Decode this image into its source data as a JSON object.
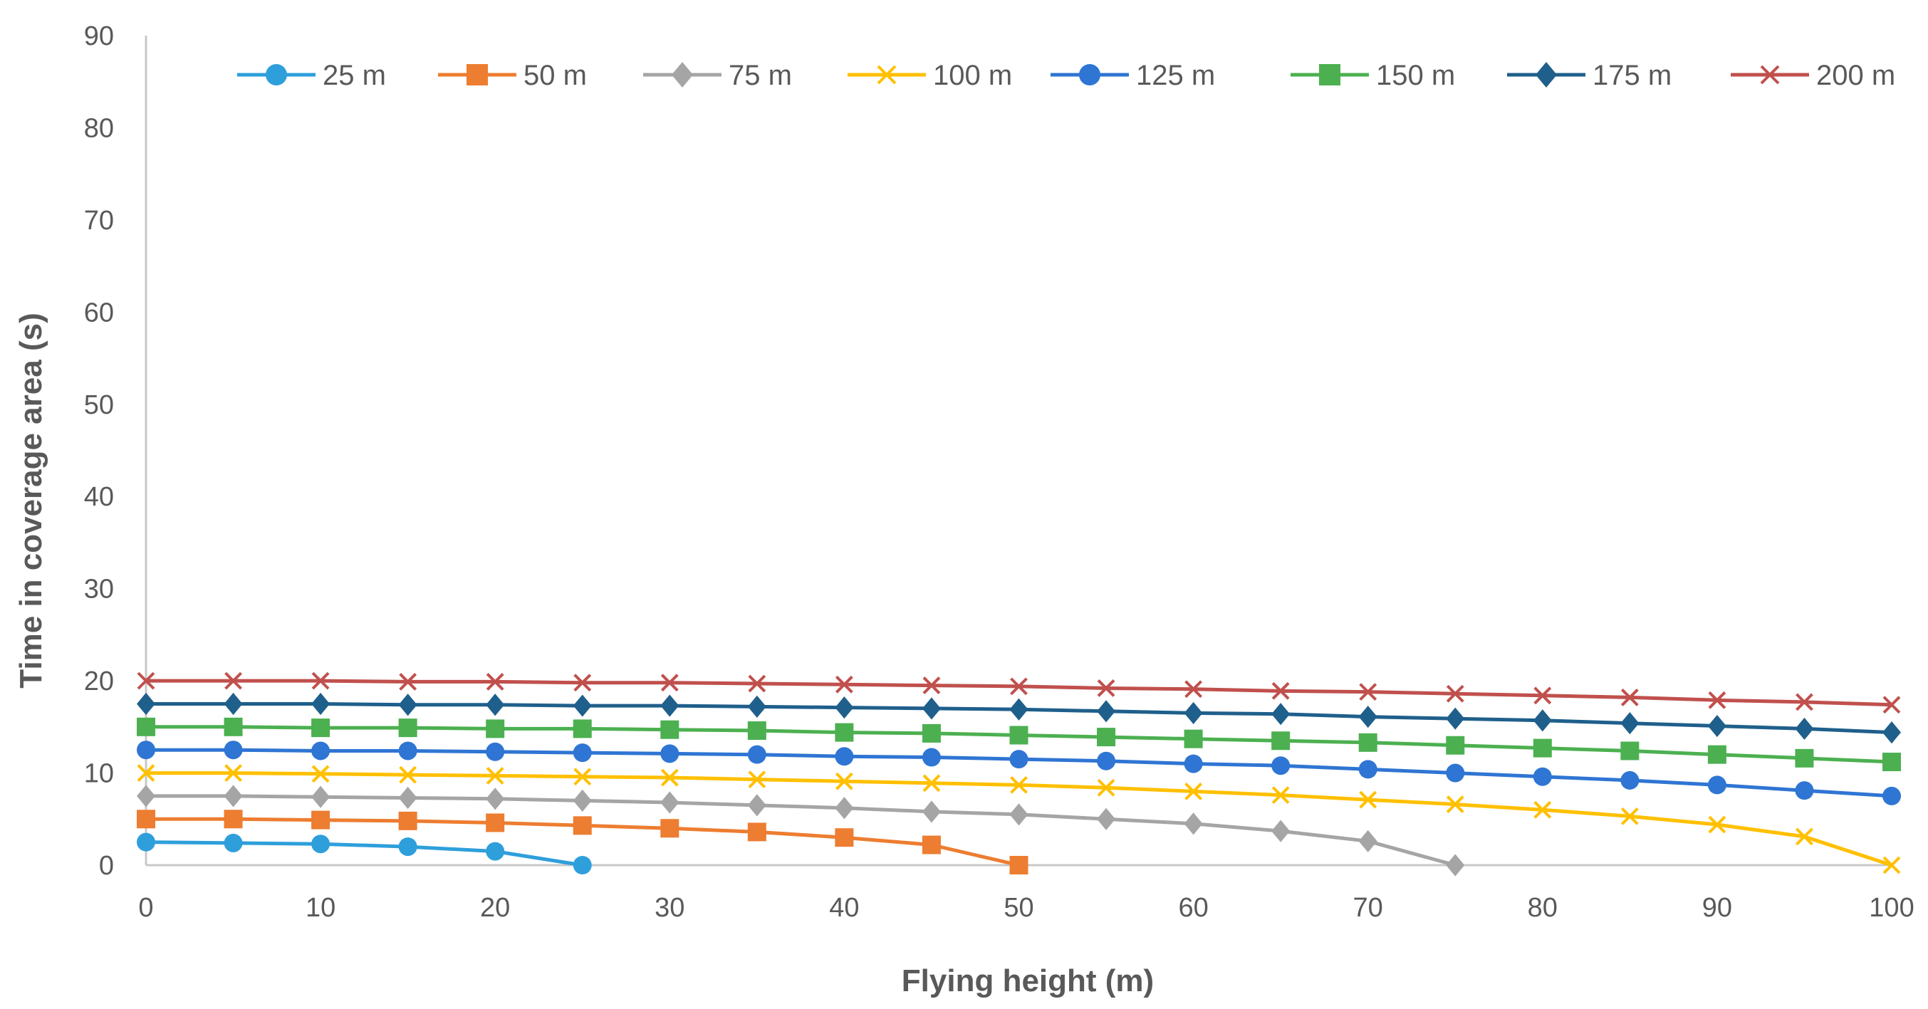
{
  "chart_data": {
    "type": "line",
    "title": "",
    "xlabel": "Flying height (m)",
    "ylabel": "Time in coverage area (s)",
    "xlim": [
      0,
      100
    ],
    "ylim": [
      0,
      90
    ],
    "xticks": [
      0,
      10,
      20,
      30,
      40,
      50,
      60,
      70,
      80,
      90,
      100
    ],
    "yticks": [
      0,
      10,
      20,
      30,
      40,
      50,
      60,
      70,
      80,
      90
    ],
    "grid": false,
    "legend_position": "top",
    "series": [
      {
        "name": "25 m",
        "color": "#2e9fdb",
        "marker": "circle",
        "x": [
          0,
          5,
          10,
          15,
          20,
          25
        ],
        "y": [
          2.5,
          2.4,
          2.3,
          2.0,
          1.5,
          0
        ]
      },
      {
        "name": "50 m",
        "color": "#ed7d31",
        "marker": "square",
        "x": [
          0,
          5,
          10,
          15,
          20,
          25,
          30,
          35,
          40,
          45,
          50
        ],
        "y": [
          5.0,
          5.0,
          4.9,
          4.8,
          4.6,
          4.3,
          4.0,
          3.6,
          3.0,
          2.2,
          0
        ]
      },
      {
        "name": "75 m",
        "color": "#a5a5a5",
        "marker": "diamond",
        "x": [
          0,
          5,
          10,
          15,
          20,
          25,
          30,
          35,
          40,
          45,
          50,
          55,
          60,
          65,
          70,
          75
        ],
        "y": [
          7.5,
          7.5,
          7.4,
          7.3,
          7.2,
          7.0,
          6.8,
          6.5,
          6.2,
          5.8,
          5.5,
          5.0,
          4.5,
          3.7,
          2.6,
          0
        ]
      },
      {
        "name": "100 m",
        "color": "#ffc000",
        "marker": "x",
        "x": [
          0,
          5,
          10,
          15,
          20,
          25,
          30,
          35,
          40,
          45,
          50,
          55,
          60,
          65,
          70,
          75,
          80,
          85,
          90,
          95,
          100
        ],
        "y": [
          10.0,
          10.0,
          9.9,
          9.8,
          9.7,
          9.6,
          9.5,
          9.3,
          9.1,
          8.9,
          8.7,
          8.4,
          8.0,
          7.6,
          7.1,
          6.6,
          6.0,
          5.3,
          4.4,
          3.1,
          0
        ]
      },
      {
        "name": "125 m",
        "color": "#2f75d3",
        "marker": "circle",
        "x": [
          0,
          5,
          10,
          15,
          20,
          25,
          30,
          35,
          40,
          45,
          50,
          55,
          60,
          65,
          70,
          75,
          80,
          85,
          90,
          95,
          100
        ],
        "y": [
          12.5,
          12.5,
          12.4,
          12.4,
          12.3,
          12.2,
          12.1,
          12.0,
          11.8,
          11.7,
          11.5,
          11.3,
          11.0,
          10.8,
          10.4,
          10.0,
          9.6,
          9.2,
          8.7,
          8.1,
          7.5
        ]
      },
      {
        "name": "150 m",
        "color": "#4cb050",
        "marker": "square",
        "x": [
          0,
          5,
          10,
          15,
          20,
          25,
          30,
          35,
          40,
          45,
          50,
          55,
          60,
          65,
          70,
          75,
          80,
          85,
          90,
          95,
          100
        ],
        "y": [
          15.0,
          15.0,
          14.9,
          14.9,
          14.8,
          14.8,
          14.7,
          14.6,
          14.4,
          14.3,
          14.1,
          13.9,
          13.7,
          13.5,
          13.3,
          13.0,
          12.7,
          12.4,
          12.0,
          11.6,
          11.2
        ]
      },
      {
        "name": "175 m",
        "color": "#1f5f8b",
        "marker": "diamond",
        "x": [
          0,
          5,
          10,
          15,
          20,
          25,
          30,
          35,
          40,
          45,
          50,
          55,
          60,
          65,
          70,
          75,
          80,
          85,
          90,
          95,
          100
        ],
        "y": [
          17.5,
          17.5,
          17.5,
          17.4,
          17.4,
          17.3,
          17.3,
          17.2,
          17.1,
          17.0,
          16.9,
          16.7,
          16.5,
          16.4,
          16.1,
          15.9,
          15.7,
          15.4,
          15.1,
          14.8,
          14.4
        ]
      },
      {
        "name": "200 m",
        "color": "#c0504d",
        "marker": "x",
        "x": [
          0,
          5,
          10,
          15,
          20,
          25,
          30,
          35,
          40,
          45,
          50,
          55,
          60,
          65,
          70,
          75,
          80,
          85,
          90,
          95,
          100
        ],
        "y": [
          20.0,
          20.0,
          20.0,
          19.9,
          19.9,
          19.8,
          19.8,
          19.7,
          19.6,
          19.5,
          19.4,
          19.2,
          19.1,
          18.9,
          18.8,
          18.6,
          18.4,
          18.2,
          17.9,
          17.7,
          17.4
        ]
      }
    ]
  }
}
